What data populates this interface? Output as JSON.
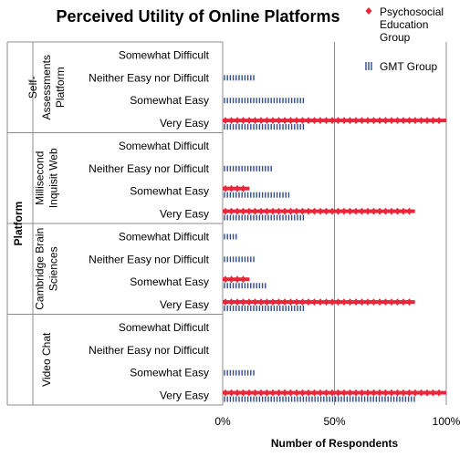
{
  "chart_data": {
    "type": "bar",
    "orientation": "horizontal",
    "title": "Perceived Utility of Online Platforms",
    "xlabel": "Number of Respondents",
    "ylabel": "Platform",
    "xlim": [
      0,
      100
    ],
    "xticks": [
      "0%",
      "50%",
      "100%"
    ],
    "grid": true,
    "legend_position": "top-right",
    "categories": [
      "Somewhat Difficult",
      "Neither Easy nor Difficult",
      "Somewhat Easy",
      "Very Easy"
    ],
    "groups": [
      {
        "label_lines": [
          "Self-",
          "Assessments",
          "Platform"
        ],
        "values": {
          "psychosocial": [
            0,
            0,
            0,
            100
          ],
          "gmt": [
            0,
            14,
            37,
            37
          ]
        }
      },
      {
        "label_lines": [
          "Millisecond",
          "Inquisit Web"
        ],
        "values": {
          "psychosocial": [
            0,
            0,
            12,
            86
          ],
          "gmt": [
            0,
            22,
            30,
            37
          ]
        }
      },
      {
        "label_lines": [
          "Cambridge Brain",
          "Sciences"
        ],
        "values": {
          "psychosocial": [
            0,
            0,
            12,
            86
          ],
          "gmt": [
            7,
            14,
            20,
            37
          ]
        }
      },
      {
        "label_lines": [
          "Video Chat"
        ],
        "values": {
          "psychosocial": [
            0,
            0,
            0,
            100
          ],
          "gmt": [
            0,
            0,
            14,
            86
          ]
        }
      }
    ],
    "series": [
      {
        "key": "psychosocial",
        "label_lines": [
          "Psychosocial",
          "Education",
          "Group"
        ],
        "color": "#e8283a",
        "marker": "diamond"
      },
      {
        "key": "gmt",
        "label_lines": [
          "GMT Group"
        ],
        "color": "#2f4b8f",
        "marker": "vertical-lines"
      }
    ]
  }
}
